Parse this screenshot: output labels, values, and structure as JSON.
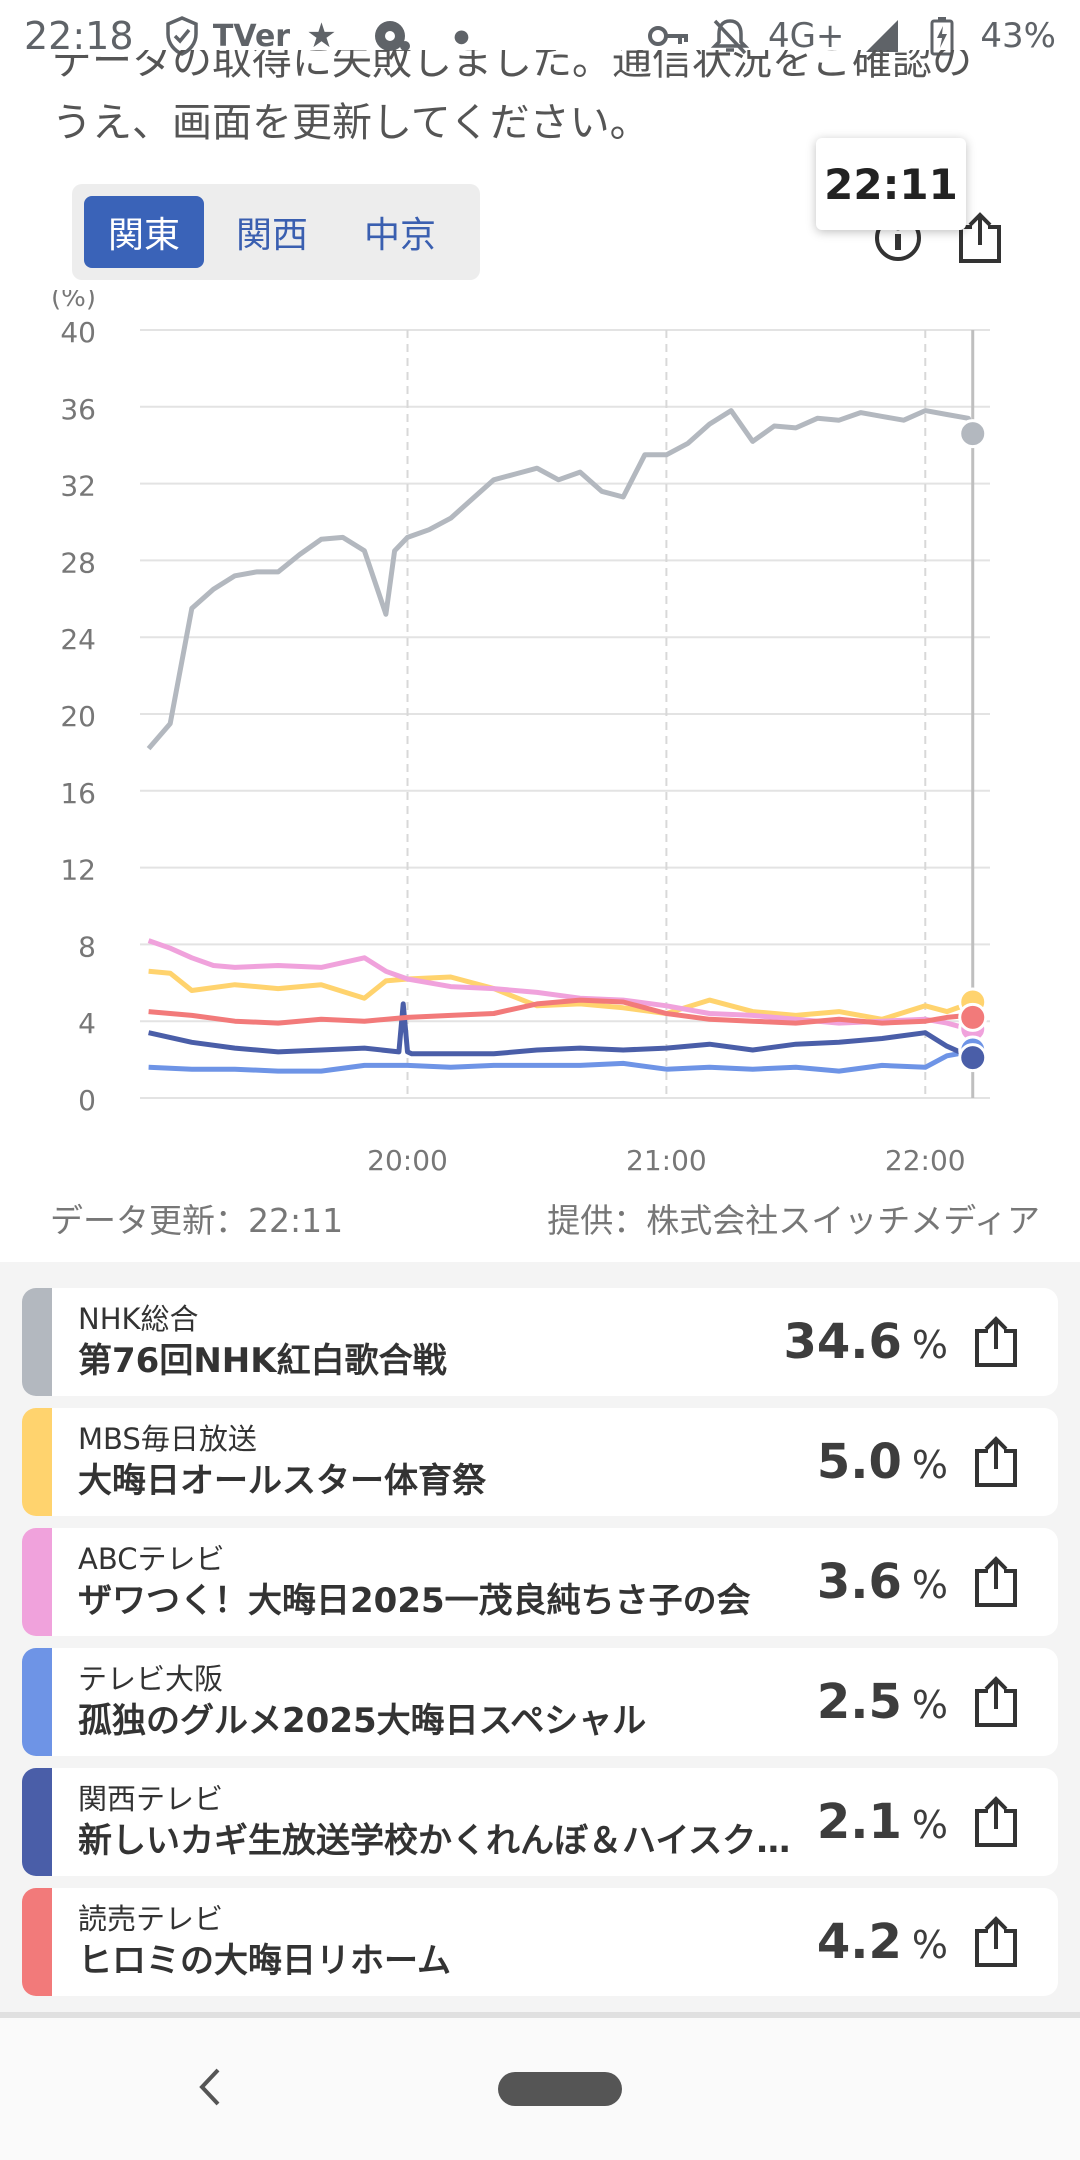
{
  "status_bar": {
    "time": "22:18",
    "network": "4G+",
    "battery": "43%",
    "icons": [
      "shield-check-icon",
      "tver-icon",
      "star-icon",
      "record-icon",
      "dot-icon",
      "key-icon",
      "notifications-off-icon",
      "signal-icon",
      "battery-charging-icon"
    ],
    "tver_label": "TVer"
  },
  "message": {
    "line1": "データの取得に失敗しました。通信状況をご確認の",
    "line2": "うえ、画面を更新してください。"
  },
  "region_tabs": [
    {
      "label": "関東",
      "active": true
    },
    {
      "label": "関西",
      "active": false
    },
    {
      "label": "中京",
      "active": false
    }
  ],
  "tooltip_time": "22:11",
  "chart_footer": {
    "updated": "データ更新：22:11",
    "provider": "提供：株式会社スイッチメディア"
  },
  "chart_data": {
    "type": "line",
    "y_unit_label": "(%)",
    "ylim": [
      0,
      40
    ],
    "y_ticks": [
      0,
      4,
      8,
      12,
      16,
      20,
      24,
      28,
      32,
      36,
      40
    ],
    "x_ticks": [
      "20:00",
      "21:00",
      "22:00"
    ],
    "x_range": [
      "19:00",
      "22:11"
    ],
    "grid": true,
    "series": [
      {
        "color": "#b3b8bf",
        "end_value": 34.6,
        "x": [
          "19:00",
          "19:05",
          "19:10",
          "19:15",
          "19:20",
          "19:25",
          "19:30",
          "19:35",
          "19:40",
          "19:45",
          "19:50",
          "19:55",
          "19:57",
          "20:00",
          "20:05",
          "20:10",
          "20:15",
          "20:20",
          "20:25",
          "20:30",
          "20:35",
          "20:40",
          "20:45",
          "20:50",
          "20:55",
          "21:00",
          "21:05",
          "21:10",
          "21:15",
          "21:20",
          "21:25",
          "21:30",
          "21:35",
          "21:40",
          "21:45",
          "21:50",
          "21:55",
          "22:00",
          "22:05",
          "22:10",
          "22:11"
        ],
        "values": [
          18.2,
          19.5,
          25.5,
          26.5,
          27.2,
          27.4,
          27.4,
          28.3,
          29.1,
          29.2,
          28.5,
          25.2,
          28.5,
          29.2,
          29.6,
          30.2,
          31.2,
          32.2,
          32.5,
          32.8,
          32.2,
          32.6,
          31.6,
          31.3,
          33.5,
          33.5,
          34.1,
          35.1,
          35.8,
          34.2,
          35.0,
          34.9,
          35.4,
          35.3,
          35.7,
          35.5,
          35.3,
          35.8,
          35.6,
          35.4,
          34.6
        ]
      },
      {
        "color": "#ffd36e",
        "end_value": 5.0,
        "x": [
          "19:00",
          "19:05",
          "19:10",
          "19:20",
          "19:30",
          "19:40",
          "19:50",
          "19:55",
          "20:00",
          "20:10",
          "20:20",
          "20:30",
          "20:40",
          "20:50",
          "21:00",
          "21:10",
          "21:20",
          "21:30",
          "21:40",
          "21:50",
          "22:00",
          "22:05",
          "22:10",
          "22:11"
        ],
        "values": [
          6.6,
          6.5,
          5.6,
          5.9,
          5.7,
          5.9,
          5.2,
          6.1,
          6.2,
          6.3,
          5.7,
          4.8,
          4.9,
          4.7,
          4.4,
          5.1,
          4.5,
          4.3,
          4.5,
          4.1,
          4.8,
          4.5,
          4.9,
          5.0
        ]
      },
      {
        "color": "#f0a2dc",
        "end_value": 3.6,
        "x": [
          "19:00",
          "19:05",
          "19:10",
          "19:15",
          "19:20",
          "19:30",
          "19:40",
          "19:50",
          "19:55",
          "20:00",
          "20:10",
          "20:20",
          "20:30",
          "20:40",
          "20:50",
          "21:00",
          "21:10",
          "21:20",
          "21:30",
          "21:40",
          "21:50",
          "22:00",
          "22:05",
          "22:10",
          "22:11"
        ],
        "values": [
          8.2,
          7.8,
          7.3,
          6.9,
          6.8,
          6.9,
          6.8,
          7.3,
          6.6,
          6.2,
          5.8,
          5.7,
          5.5,
          5.2,
          5.1,
          4.8,
          4.4,
          4.3,
          4.1,
          3.9,
          4.0,
          4.1,
          3.9,
          3.6,
          3.6
        ]
      },
      {
        "color": "#6e94e6",
        "end_value": 2.5,
        "x": [
          "19:00",
          "19:10",
          "19:20",
          "19:30",
          "19:40",
          "19:50",
          "20:00",
          "20:10",
          "20:20",
          "20:30",
          "20:40",
          "20:50",
          "21:00",
          "21:10",
          "21:20",
          "21:30",
          "21:40",
          "21:50",
          "22:00",
          "22:05",
          "22:10",
          "22:11"
        ],
        "values": [
          1.6,
          1.5,
          1.5,
          1.4,
          1.4,
          1.7,
          1.7,
          1.6,
          1.7,
          1.7,
          1.7,
          1.8,
          1.5,
          1.6,
          1.5,
          1.6,
          1.4,
          1.7,
          1.6,
          2.2,
          2.4,
          2.5
        ]
      },
      {
        "color": "#4a5ea8",
        "end_value": 2.1,
        "x": [
          "19:00",
          "19:10",
          "19:20",
          "19:30",
          "19:40",
          "19:50",
          "19:58",
          "19:59",
          "20:00",
          "20:01",
          "20:10",
          "20:20",
          "20:30",
          "20:40",
          "20:50",
          "21:00",
          "21:10",
          "21:20",
          "21:30",
          "21:40",
          "21:50",
          "22:00",
          "22:05",
          "22:10",
          "22:11"
        ],
        "values": [
          3.4,
          2.9,
          2.6,
          2.4,
          2.5,
          2.6,
          2.4,
          4.9,
          2.4,
          2.3,
          2.3,
          2.3,
          2.5,
          2.6,
          2.5,
          2.6,
          2.8,
          2.5,
          2.8,
          2.9,
          3.1,
          3.4,
          2.7,
          2.2,
          2.1
        ]
      },
      {
        "color": "#f27a7a",
        "end_value": 4.2,
        "x": [
          "19:00",
          "19:10",
          "19:20",
          "19:30",
          "19:40",
          "19:50",
          "20:00",
          "20:10",
          "20:20",
          "20:30",
          "20:40",
          "20:50",
          "21:00",
          "21:10",
          "21:20",
          "21:30",
          "21:40",
          "21:50",
          "22:00",
          "22:05",
          "22:10",
          "22:11"
        ],
        "values": [
          4.5,
          4.3,
          4.0,
          3.9,
          4.1,
          4.0,
          4.2,
          4.3,
          4.4,
          4.9,
          5.1,
          5.0,
          4.4,
          4.1,
          4.0,
          3.9,
          4.1,
          3.9,
          4.0,
          4.2,
          4.3,
          4.2
        ]
      }
    ]
  },
  "programs": [
    {
      "channel": "NHK総合",
      "title": "第76回NHK紅白歌合戦",
      "rating": "34.6",
      "unit": "%",
      "color": "#b3b8bf"
    },
    {
      "channel": "MBS毎日放送",
      "title": "大晦日オールスター体育祭",
      "rating": "5.0",
      "unit": "%",
      "color": "#ffd36e"
    },
    {
      "channel": "ABCテレビ",
      "title": "ザワつく！大晦日2025一茂良純ちさ子の会",
      "rating": "3.6",
      "unit": "%",
      "color": "#f0a2dc"
    },
    {
      "channel": "テレビ大阪",
      "title": "孤独のグルメ2025大晦日スペシャル",
      "rating": "2.5",
      "unit": "%",
      "color": "#6e94e6"
    },
    {
      "channel": "関西テレビ",
      "title": "新しいカギ生放送学校かくれんぼ＆ハイスクール",
      "rating": "2.1",
      "unit": "%",
      "color": "#4a5ea8"
    },
    {
      "channel": "読売テレビ",
      "title": "ヒロミの大晦日リホーム",
      "rating": "4.2",
      "unit": "%",
      "color": "#f27a7a"
    }
  ]
}
